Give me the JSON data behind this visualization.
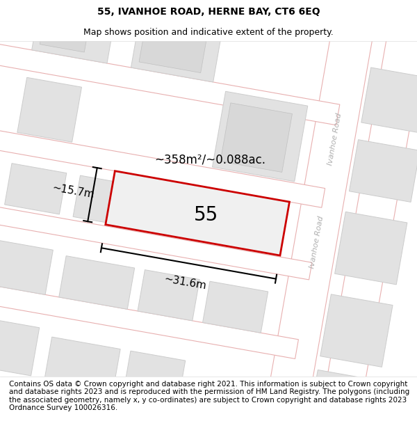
{
  "title_line1": "55, IVANHOE ROAD, HERNE BAY, CT6 6EQ",
  "title_line2": "Map shows position and indicative extent of the property.",
  "footer_text": "Contains OS data © Crown copyright and database right 2021. This information is subject to Crown copyright and database rights 2023 and is reproduced with the permission of HM Land Registry. The polygons (including the associated geometry, namely x, y co-ordinates) are subject to Crown copyright and database rights 2023 Ordnance Survey 100026316.",
  "area_label": "~358m²/~0.088ac.",
  "width_label": "~31.6m",
  "height_label": "~15.7m",
  "property_number": "55",
  "road_label_top": "Ivanhoe Road",
  "road_label_bottom": "Ivanhoe Road",
  "bg_color": "#ffffff",
  "map_bg": "#f5f5f5",
  "road_color": "#ffffff",
  "road_line_color": "#e8b0b0",
  "plot_line_color": "#cc0000",
  "building_fill": "#e2e2e2",
  "building_stroke": "#cccccc",
  "title_fontsize": 10,
  "subtitle_fontsize": 9,
  "footer_fontsize": 7.5,
  "area_fontsize": 12,
  "dim_fontsize": 11,
  "number_fontsize": 20,
  "road_label_fontsize": 8
}
